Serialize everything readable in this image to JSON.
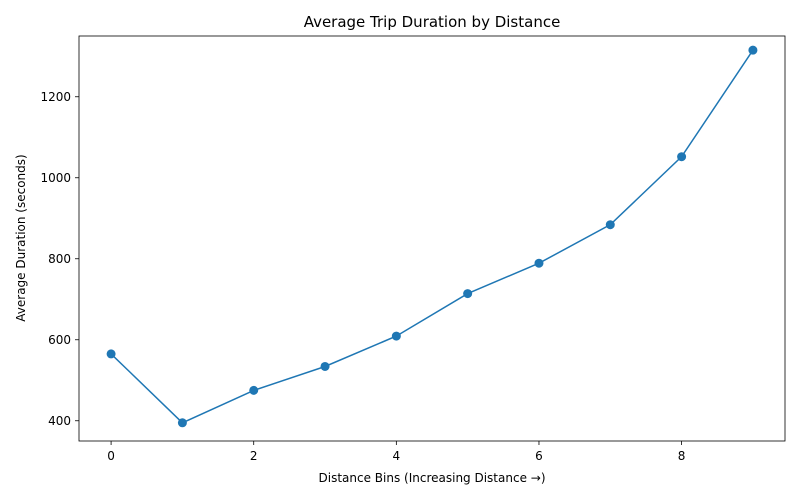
{
  "chart_data": {
    "type": "line",
    "title": "Average Trip Duration by Distance",
    "xlabel": "Distance Bins (Increasing Distance →)",
    "ylabel": "Average Duration (seconds)",
    "xlim": [
      -0.45,
      9.45
    ],
    "ylim": [
      350,
      1350
    ],
    "xticks": [
      0,
      2,
      4,
      6,
      8
    ],
    "yticks": [
      400,
      600,
      800,
      1000,
      1200
    ],
    "grid": false,
    "series": [
      {
        "color": "#1f77b4",
        "x": [
          0,
          1,
          2,
          3,
          4,
          5,
          6,
          7,
          8,
          9
        ],
        "y": [
          565,
          395,
          475,
          534,
          609,
          714,
          789,
          884,
          1052,
          1315
        ]
      }
    ]
  }
}
